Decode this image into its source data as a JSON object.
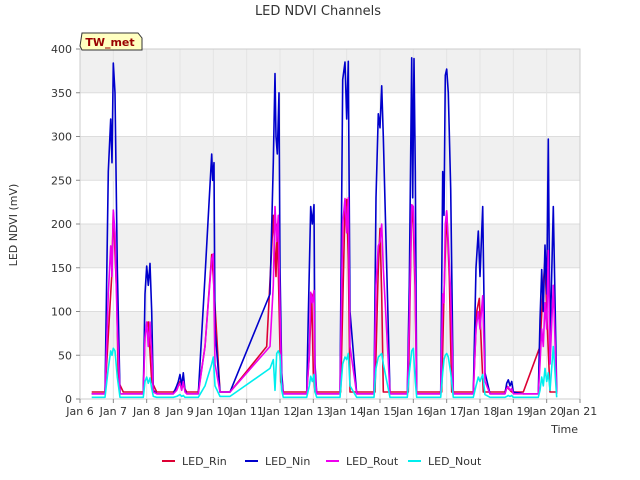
{
  "chart_data": {
    "type": "line",
    "title": "LED NDVI Channels",
    "xlabel": "Time",
    "ylabel": "LED NDVI (mV)",
    "ylim": [
      0,
      400
    ],
    "xlim": [
      6,
      21
    ],
    "yticks": [
      0,
      50,
      100,
      150,
      200,
      250,
      300,
      350,
      400
    ],
    "x_tick_values": [
      6,
      7,
      8,
      9,
      10,
      11,
      12,
      13,
      14,
      15,
      16,
      17,
      18,
      19,
      20,
      21
    ],
    "x_tick_labels": [
      "Jan 6",
      "Jan 7",
      "Jan 8",
      "Jan 9",
      "Jan 10",
      "Jan 11",
      "Jan 12",
      "Jan 13",
      "Jan 14",
      "Jan 15",
      "Jan 16",
      "Jan 17",
      "Jan 18",
      "Jan 19",
      "Jan 20",
      "Jan 21"
    ],
    "grid": true,
    "band_background": true,
    "legend_position": "bottom",
    "site_label": "TW_met",
    "series": [
      {
        "name": "LED_Rin",
        "color": "#dd0033",
        "x": [
          6.35,
          6.75,
          6.95,
          7.0,
          7.1,
          7.15,
          7.3,
          7.5,
          7.9,
          7.95,
          8.05,
          8.15,
          8.3,
          8.8,
          8.92,
          9.0,
          9.1,
          9.2,
          9.55,
          9.75,
          9.95,
          10.0,
          10.2,
          10.5,
          11.6,
          11.8,
          11.88,
          11.92,
          12.02,
          12.1,
          12.3,
          12.8,
          12.88,
          12.95,
          13.0,
          13.05,
          13.3,
          13.82,
          13.95,
          14.0,
          14.05,
          14.1,
          14.3,
          14.85,
          14.95,
          15.0,
          15.05,
          15.1,
          15.3,
          15.85,
          15.95,
          16.0,
          16.05,
          16.1,
          16.3,
          16.85,
          16.92,
          17.0,
          17.08,
          17.15,
          17.3,
          17.8,
          17.9,
          17.98,
          18.1,
          18.3,
          18.75,
          18.8,
          18.85,
          18.95,
          19.3,
          19.8,
          19.88,
          19.95,
          20.0,
          20.1,
          20.3
        ],
        "y": [
          8,
          8,
          140,
          214,
          120,
          20,
          8,
          8,
          8,
          75,
          88,
          20,
          8,
          8,
          12,
          20,
          15,
          8,
          8,
          60,
          165,
          140,
          8,
          8,
          60,
          210,
          140,
          200,
          20,
          8,
          8,
          8,
          50,
          120,
          30,
          8,
          8,
          8,
          220,
          228,
          160,
          8,
          8,
          8,
          150,
          195,
          120,
          8,
          8,
          8,
          220,
          200,
          130,
          8,
          8,
          8,
          120,
          215,
          140,
          8,
          8,
          8,
          100,
          115,
          8,
          8,
          8,
          15,
          12,
          8,
          8,
          60,
          120,
          160,
          100,
          8,
          8
        ]
      },
      {
        "name": "LED_Nin",
        "color": "#0000cc",
        "x": [
          6.35,
          6.75,
          6.85,
          6.92,
          6.96,
          7.0,
          7.05,
          7.12,
          7.2,
          7.3,
          7.5,
          7.9,
          7.95,
          8.0,
          8.05,
          8.1,
          8.15,
          8.2,
          8.3,
          8.8,
          8.9,
          8.95,
          9.0,
          9.05,
          9.1,
          9.15,
          9.2,
          9.55,
          9.75,
          9.95,
          9.98,
          10.02,
          10.05,
          10.2,
          10.5,
          11.7,
          11.8,
          11.85,
          11.88,
          11.92,
          11.97,
          12.0,
          12.05,
          12.1,
          12.3,
          12.8,
          12.85,
          12.92,
          12.97,
          13.02,
          13.05,
          13.1,
          13.3,
          13.8,
          13.88,
          13.95,
          14.0,
          14.05,
          14.1,
          14.3,
          14.82,
          14.88,
          14.95,
          15.0,
          15.05,
          15.1,
          15.3,
          15.82,
          15.88,
          15.95,
          15.98,
          16.02,
          16.06,
          16.1,
          16.3,
          16.82,
          16.88,
          16.92,
          16.96,
          17.0,
          17.05,
          17.12,
          17.2,
          17.3,
          17.8,
          17.88,
          17.95,
          18.0,
          18.08,
          18.15,
          18.3,
          18.75,
          18.8,
          18.85,
          18.9,
          18.95,
          19.0,
          19.3,
          19.75,
          19.8,
          19.85,
          19.9,
          19.95,
          20.0,
          20.05,
          20.1,
          20.2,
          20.3
        ],
        "y": [
          6,
          6,
          260,
          320,
          270,
          384,
          350,
          150,
          6,
          6,
          6,
          6,
          120,
          152,
          130,
          155,
          100,
          10,
          6,
          6,
          15,
          20,
          28,
          15,
          30,
          10,
          6,
          6,
          140,
          280,
          250,
          270,
          80,
          8,
          8,
          120,
          270,
          372,
          300,
          280,
          350,
          150,
          30,
          6,
          6,
          6,
          95,
          220,
          200,
          222,
          40,
          6,
          6,
          6,
          365,
          385,
          320,
          386,
          100,
          6,
          6,
          230,
          326,
          310,
          358,
          300,
          6,
          6,
          130,
          390,
          230,
          389,
          260,
          6,
          6,
          6,
          260,
          210,
          370,
          377,
          350,
          240,
          6,
          6,
          6,
          150,
          192,
          140,
          220,
          30,
          6,
          6,
          18,
          22,
          15,
          20,
          8,
          6,
          6,
          90,
          148,
          100,
          176,
          120,
          297,
          60,
          220,
          8
        ]
      },
      {
        "name": "LED_Rout",
        "color": "#ee00ee",
        "x": [
          6.35,
          6.75,
          6.85,
          6.92,
          6.96,
          7.0,
          7.05,
          7.12,
          7.2,
          7.3,
          7.5,
          7.9,
          7.95,
          8.0,
          8.05,
          8.1,
          8.15,
          8.2,
          8.3,
          8.8,
          8.9,
          8.95,
          9.0,
          9.05,
          9.1,
          9.15,
          9.2,
          9.55,
          9.75,
          9.95,
          10.0,
          10.05,
          10.2,
          10.5,
          11.7,
          11.8,
          11.85,
          11.9,
          11.95,
          12.0,
          12.05,
          12.1,
          12.3,
          12.8,
          12.88,
          12.92,
          12.97,
          13.02,
          13.05,
          13.1,
          13.3,
          13.8,
          13.88,
          13.95,
          14.0,
          14.05,
          14.1,
          14.3,
          14.82,
          14.88,
          14.95,
          15.0,
          15.05,
          15.1,
          15.3,
          15.82,
          15.88,
          15.95,
          16.0,
          16.06,
          16.1,
          16.3,
          16.82,
          16.88,
          16.92,
          16.96,
          17.0,
          17.05,
          17.12,
          17.2,
          17.3,
          17.8,
          17.88,
          17.95,
          18.0,
          18.08,
          18.15,
          18.3,
          18.75,
          18.8,
          18.85,
          18.9,
          18.95,
          19.0,
          19.3,
          19.75,
          19.8,
          19.85,
          19.9,
          19.95,
          20.0,
          20.05,
          20.1,
          20.2,
          20.3
        ],
        "y": [
          6,
          6,
          120,
          175,
          140,
          216,
          190,
          80,
          6,
          6,
          6,
          6,
          70,
          88,
          60,
          88,
          50,
          8,
          6,
          6,
          10,
          15,
          18,
          10,
          20,
          8,
          6,
          6,
          60,
          160,
          166,
          40,
          8,
          8,
          60,
          130,
          220,
          180,
          210,
          100,
          20,
          6,
          6,
          6,
          50,
          122,
          110,
          124,
          30,
          6,
          6,
          6,
          200,
          229,
          190,
          230,
          60,
          6,
          6,
          130,
          175,
          180,
          200,
          150,
          6,
          6,
          90,
          222,
          220,
          130,
          6,
          6,
          6,
          120,
          110,
          200,
          215,
          180,
          120,
          6,
          6,
          6,
          80,
          100,
          80,
          118,
          20,
          6,
          6,
          12,
          14,
          10,
          12,
          6,
          6,
          6,
          40,
          80,
          60,
          110,
          80,
          170,
          40,
          130,
          6
        ]
      },
      {
        "name": "LED_Nout",
        "color": "#00eeee",
        "x": [
          6.35,
          6.75,
          6.85,
          6.92,
          6.96,
          7.0,
          7.05,
          7.12,
          7.2,
          7.3,
          7.5,
          7.9,
          7.95,
          8.0,
          8.05,
          8.1,
          8.15,
          8.2,
          8.3,
          8.8,
          8.9,
          8.95,
          9.0,
          9.05,
          9.1,
          9.15,
          9.2,
          9.55,
          9.75,
          9.95,
          10.0,
          10.05,
          10.2,
          10.5,
          11.7,
          11.8,
          11.85,
          11.9,
          11.95,
          12.0,
          12.05,
          12.1,
          12.3,
          12.8,
          12.88,
          12.92,
          12.97,
          13.02,
          13.05,
          13.1,
          13.3,
          13.8,
          13.88,
          13.95,
          14.0,
          14.05,
          14.1,
          14.3,
          14.82,
          14.88,
          14.95,
          15.0,
          15.05,
          15.1,
          15.3,
          15.82,
          15.88,
          15.95,
          16.0,
          16.06,
          16.1,
          16.3,
          16.82,
          16.88,
          16.92,
          16.96,
          17.0,
          17.05,
          17.12,
          17.2,
          17.3,
          17.8,
          17.88,
          17.95,
          18.0,
          18.08,
          18.15,
          18.3,
          18.75,
          18.8,
          18.85,
          18.9,
          18.95,
          19.0,
          19.3,
          19.75,
          19.8,
          19.85,
          19.9,
          19.95,
          20.0,
          20.05,
          20.1,
          20.2,
          20.3
        ],
        "y": [
          2,
          2,
          35,
          55,
          50,
          58,
          55,
          25,
          2,
          2,
          2,
          2,
          20,
          25,
          18,
          24,
          12,
          3,
          2,
          2,
          3,
          4,
          5,
          3,
          4,
          2,
          2,
          2,
          15,
          40,
          48,
          15,
          3,
          3,
          35,
          45,
          10,
          52,
          55,
          50,
          10,
          2,
          2,
          2,
          15,
          26,
          20,
          28,
          8,
          2,
          2,
          2,
          40,
          48,
          45,
          52,
          15,
          2,
          2,
          35,
          48,
          50,
          52,
          40,
          2,
          2,
          30,
          55,
          58,
          20,
          2,
          2,
          2,
          30,
          45,
          50,
          52,
          48,
          30,
          2,
          2,
          2,
          15,
          25,
          20,
          28,
          5,
          2,
          2,
          3,
          4,
          3,
          4,
          2,
          2,
          2,
          10,
          25,
          15,
          35,
          20,
          30,
          10,
          60,
          2
        ]
      }
    ]
  }
}
